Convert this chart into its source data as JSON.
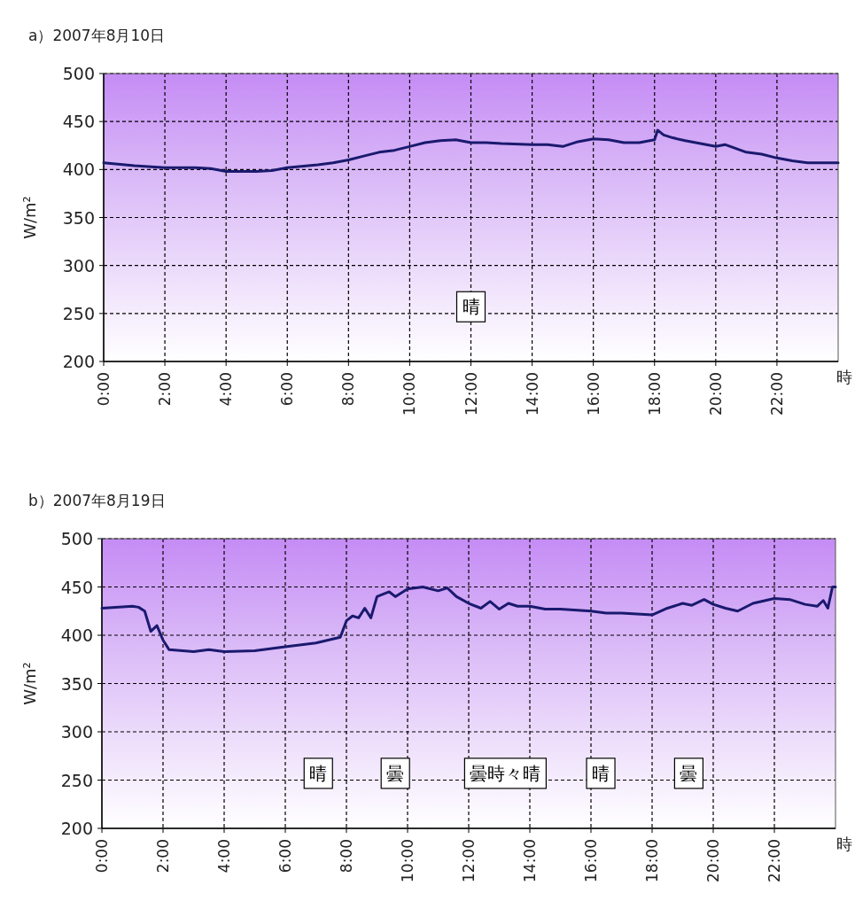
{
  "chart_data": [
    {
      "type": "line",
      "title": "a）2007年8月10日",
      "ylabel": "W/m²",
      "xlabel": "時",
      "annotations": [
        "晴"
      ],
      "x": [
        0,
        1,
        2,
        3,
        3.5,
        4,
        5,
        5.5,
        6,
        7,
        7.5,
        8,
        8.5,
        9,
        9.5,
        10,
        10.5,
        11,
        11.5,
        12,
        12.5,
        13,
        14,
        14.5,
        15,
        15.5,
        16,
        16.5,
        17,
        17.5,
        18,
        18.1,
        18.3,
        18.6,
        19,
        19.5,
        20,
        20.3,
        21,
        21.5,
        22,
        22.5,
        23,
        24
      ],
      "series": [
        {
          "color": "#1a1a6e",
          "values": [
            407,
            404,
            402,
            402,
            401,
            398,
            398,
            399,
            402,
            405,
            407,
            410,
            414,
            418,
            420,
            424,
            428,
            430,
            431,
            428,
            428,
            427,
            426,
            426,
            424,
            429,
            432,
            431,
            428,
            428,
            431,
            441,
            436,
            433,
            430,
            427,
            424,
            426,
            418,
            416,
            412,
            409,
            407,
            407
          ]
        }
      ],
      "xlim": [
        0,
        24
      ],
      "ylim": [
        200,
        500
      ],
      "xticks": [
        {
          "value": 0,
          "label": "0:00"
        },
        {
          "value": 2,
          "label": "2:00"
        },
        {
          "value": 4,
          "label": "4:00"
        },
        {
          "value": 6,
          "label": "6:00"
        },
        {
          "value": 8,
          "label": "8:00"
        },
        {
          "value": 10,
          "label": "10:00"
        },
        {
          "value": 12,
          "label": "12:00"
        },
        {
          "value": 14,
          "label": "14:00"
        },
        {
          "value": 16,
          "label": "16:00"
        },
        {
          "value": 18,
          "label": "18:00"
        },
        {
          "value": 20,
          "label": "20:00"
        },
        {
          "value": 22,
          "label": "22:00"
        }
      ],
      "yticks": [
        200,
        250,
        300,
        350,
        400,
        450,
        500
      ],
      "grid": true
    },
    {
      "type": "line",
      "title": "b）2007年8月19日",
      "ylabel": "W/m²",
      "xlabel": "時",
      "annotations": [
        "晴",
        "曇",
        "曇時々晴",
        "晴",
        "曇"
      ],
      "x": [
        0,
        1,
        1.2,
        1.4,
        1.6,
        1.8,
        2,
        2.2,
        3,
        3.5,
        4,
        5,
        6,
        7,
        7.8,
        8,
        8.2,
        8.4,
        8.6,
        8.8,
        9,
        9.4,
        9.6,
        10,
        10.5,
        11,
        11.3,
        11.6,
        12,
        12.4,
        12.7,
        13,
        13.3,
        13.6,
        14,
        14.5,
        15,
        16,
        16.5,
        17,
        18,
        18.5,
        19,
        19.3,
        19.7,
        20,
        20.4,
        20.8,
        21.3,
        22,
        22.5,
        23,
        23.4,
        23.6,
        23.75,
        23.9,
        24
      ],
      "series": [
        {
          "color": "#1a1a6e",
          "values": [
            428,
            430,
            429,
            425,
            404,
            410,
            395,
            385,
            383,
            385,
            383,
            384,
            388,
            392,
            398,
            415,
            420,
            418,
            428,
            418,
            440,
            445,
            440,
            448,
            450,
            446,
            449,
            440,
            433,
            428,
            435,
            427,
            433,
            430,
            430,
            427,
            427,
            425,
            423,
            423,
            421,
            428,
            433,
            431,
            437,
            432,
            428,
            425,
            433,
            438,
            437,
            432,
            430,
            436,
            428,
            450,
            450
          ]
        }
      ],
      "xlim": [
        0,
        24
      ],
      "ylim": [
        200,
        500
      ],
      "xticks": [
        {
          "value": 0,
          "label": "0:00"
        },
        {
          "value": 2,
          "label": "2:00"
        },
        {
          "value": 4,
          "label": "4:00"
        },
        {
          "value": 6,
          "label": "6:00"
        },
        {
          "value": 8,
          "label": "8:00"
        },
        {
          "value": 10,
          "label": "10:00"
        },
        {
          "value": 12,
          "label": "12:00"
        },
        {
          "value": 14,
          "label": "14:00"
        },
        {
          "value": 16,
          "label": "16:00"
        },
        {
          "value": 18,
          "label": "18:00"
        },
        {
          "value": 20,
          "label": "20:00"
        },
        {
          "value": 22,
          "label": "22:00"
        }
      ],
      "yticks": [
        200,
        250,
        300,
        350,
        400,
        450,
        500
      ],
      "grid": true
    }
  ]
}
